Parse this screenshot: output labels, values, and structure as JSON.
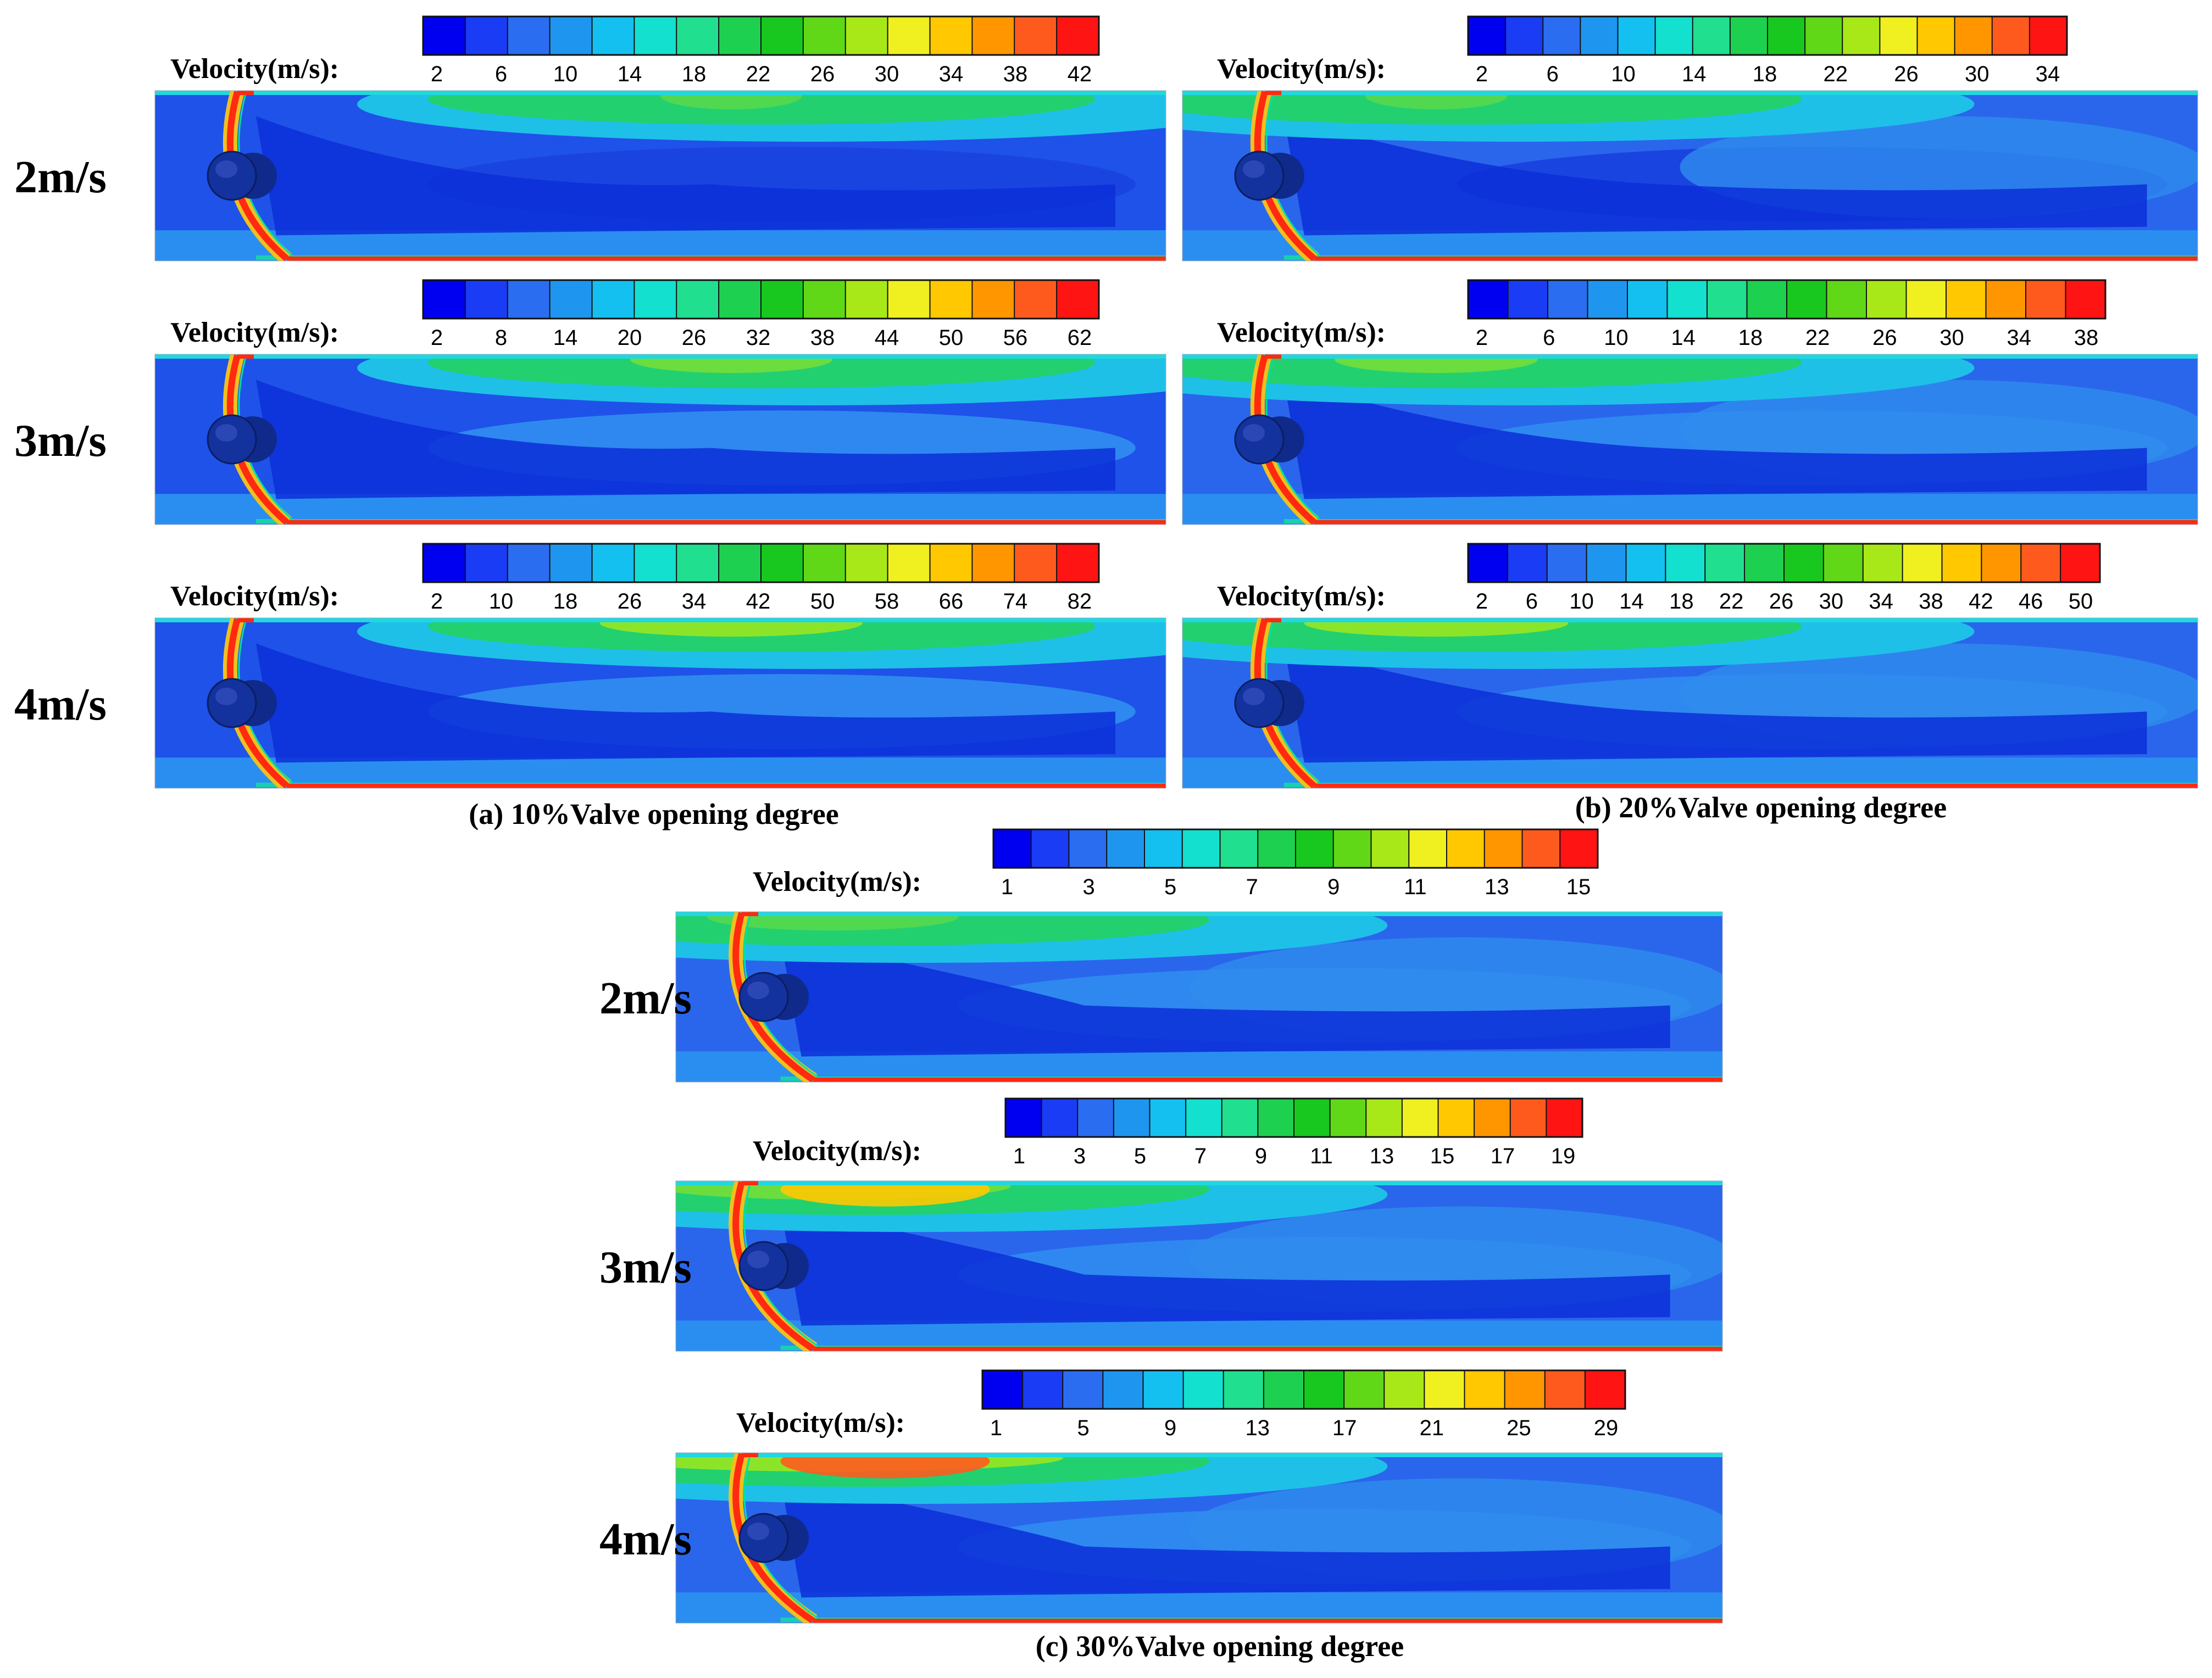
{
  "figure": {
    "velocity_label": "Velocity(m/s):",
    "colors": [
      "#0000f0",
      "#1a3cf5",
      "#2a6df0",
      "#1e96f0",
      "#14c0f0",
      "#14e0d0",
      "#20e090",
      "#1ed050",
      "#18c81e",
      "#60d818",
      "#a8e818",
      "#f0f020",
      "#ffc800",
      "#ff9600",
      "#ff5a1e",
      "#ff1414"
    ],
    "panels": [
      {
        "id": "a",
        "caption": "(a) 10%Valve opening degree",
        "cases": [
          {
            "speed_label": "2m/s",
            "ticks": [
              "2",
              "6",
              "10",
              "14",
              "18",
              "22",
              "26",
              "30",
              "34",
              "38",
              "42"
            ]
          },
          {
            "speed_label": "3m/s",
            "ticks": [
              "2",
              "8",
              "14",
              "20",
              "26",
              "32",
              "38",
              "44",
              "50",
              "56",
              "62"
            ]
          },
          {
            "speed_label": "4m/s",
            "ticks": [
              "2",
              "10",
              "18",
              "26",
              "34",
              "42",
              "50",
              "58",
              "66",
              "74",
              "82"
            ]
          }
        ]
      },
      {
        "id": "b",
        "caption": "(b) 20%Valve opening degree",
        "cases": [
          {
            "speed_label": "",
            "ticks": [
              "2",
              "6",
              "10",
              "14",
              "18",
              "22",
              "26",
              "30",
              "34"
            ]
          },
          {
            "speed_label": "",
            "ticks": [
              "2",
              "6",
              "10",
              "14",
              "18",
              "22",
              "26",
              "30",
              "34",
              "38"
            ]
          },
          {
            "speed_label": "",
            "ticks": [
              "2",
              "6",
              "10",
              "14",
              "18",
              "22",
              "26",
              "30",
              "34",
              "38",
              "42",
              "46",
              "50"
            ]
          }
        ]
      },
      {
        "id": "c",
        "caption": "(c) 30%Valve opening degree",
        "cases": [
          {
            "speed_label": "2m/s",
            "ticks": [
              "1",
              "3",
              "5",
              "7",
              "9",
              "11",
              "13",
              "15"
            ]
          },
          {
            "speed_label": "3m/s",
            "ticks": [
              "1",
              "3",
              "5",
              "7",
              "9",
              "11",
              "13",
              "15",
              "17",
              "19"
            ]
          },
          {
            "speed_label": "4m/s",
            "ticks": [
              "1",
              "5",
              "9",
              "13",
              "17",
              "21",
              "25",
              "29"
            ]
          }
        ]
      }
    ]
  }
}
